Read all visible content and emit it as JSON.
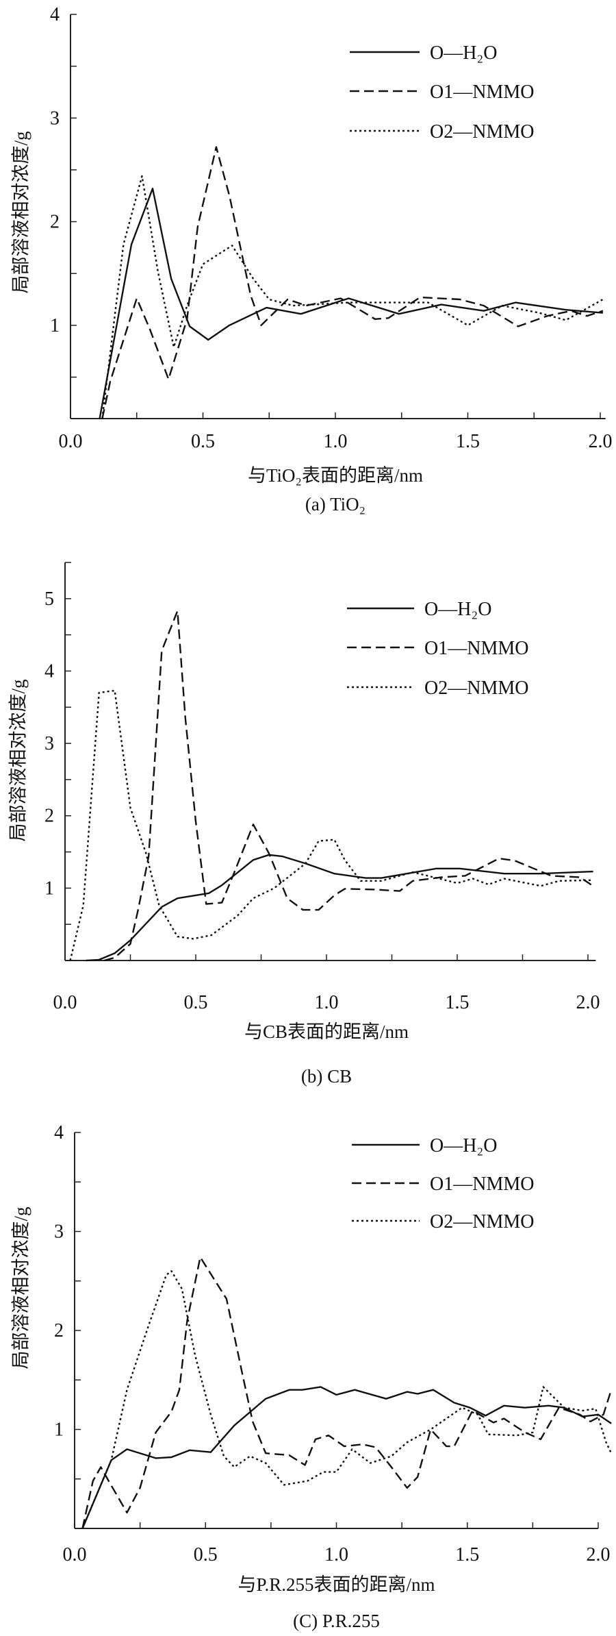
{
  "chart_data": [
    {
      "type": "line",
      "caption": "(a) TiO₂",
      "xlabel": "与TiO₂表面的距离/nm",
      "ylabel": "局部溶液相对浓度/g",
      "xlim": [
        0,
        2.02
      ],
      "ylim": [
        0.1,
        4
      ],
      "xticks": [
        "0.0",
        "0.5",
        "1.0",
        "1.5",
        "2.0"
      ],
      "yticks": [
        "1",
        "2",
        "3",
        "4"
      ],
      "grid": false,
      "legend_position": "top-right",
      "series": [
        {
          "name": "O—H₂O",
          "style": "solid",
          "points": [
            [
              0.11,
              0.1
            ],
            [
              0.23,
              1.78
            ],
            [
              0.31,
              2.32
            ],
            [
              0.38,
              1.45
            ],
            [
              0.45,
              0.99
            ],
            [
              0.52,
              0.86
            ],
            [
              0.6,
              1.0
            ],
            [
              0.74,
              1.17
            ],
            [
              0.87,
              1.11
            ],
            [
              1.05,
              1.26
            ],
            [
              1.24,
              1.11
            ],
            [
              1.4,
              1.2
            ],
            [
              1.56,
              1.14
            ],
            [
              1.68,
              1.22
            ],
            [
              1.87,
              1.15
            ],
            [
              2.01,
              1.12
            ]
          ]
        },
        {
          "name": "O1—NMMO",
          "style": "dashed",
          "points": [
            [
              0.12,
              0.1
            ],
            [
              0.15,
              0.46
            ],
            [
              0.25,
              1.26
            ],
            [
              0.3,
              0.96
            ],
            [
              0.37,
              0.48
            ],
            [
              0.44,
              1.06
            ],
            [
              0.48,
              1.95
            ],
            [
              0.55,
              2.72
            ],
            [
              0.6,
              2.25
            ],
            [
              0.68,
              1.29
            ],
            [
              0.72,
              1.0
            ],
            [
              0.82,
              1.25
            ],
            [
              0.89,
              1.19
            ],
            [
              1.02,
              1.26
            ],
            [
              1.15,
              1.06
            ],
            [
              1.2,
              1.07
            ],
            [
              1.32,
              1.27
            ],
            [
              1.47,
              1.25
            ],
            [
              1.56,
              1.19
            ],
            [
              1.69,
              0.99
            ],
            [
              1.8,
              1.09
            ],
            [
              1.89,
              1.14
            ],
            [
              1.95,
              1.09
            ],
            [
              2.01,
              1.14
            ]
          ]
        },
        {
          "name": "O2—NMMO",
          "style": "dotted",
          "points": [
            [
              0.12,
              0.1
            ],
            [
              0.2,
              1.78
            ],
            [
              0.27,
              2.44
            ],
            [
              0.33,
              1.52
            ],
            [
              0.39,
              0.79
            ],
            [
              0.44,
              1.19
            ],
            [
              0.5,
              1.59
            ],
            [
              0.61,
              1.77
            ],
            [
              0.69,
              1.45
            ],
            [
              0.75,
              1.25
            ],
            [
              0.84,
              1.19
            ],
            [
              1.05,
              1.22
            ],
            [
              1.2,
              1.22
            ],
            [
              1.35,
              1.22
            ],
            [
              1.5,
              1.0
            ],
            [
              1.63,
              1.19
            ],
            [
              1.77,
              1.12
            ],
            [
              1.87,
              1.05
            ],
            [
              2.01,
              1.25
            ]
          ]
        }
      ]
    },
    {
      "type": "line",
      "caption": "(b) CB",
      "xlabel": "与CB表面的距离/nm",
      "ylabel": "局部溶液相对浓度/g",
      "xlim": [
        0,
        2.03
      ],
      "ylim": [
        0,
        5.5
      ],
      "xticks": [
        "0.0",
        "0.5",
        "1.0",
        "1.5",
        "2.0"
      ],
      "yticks": [
        "1",
        "2",
        "3",
        "4",
        "5"
      ],
      "grid": false,
      "legend_position": "top-right",
      "series": [
        {
          "name": "O—H₂O",
          "style": "solid",
          "points": [
            [
              0.08,
              0
            ],
            [
              0.13,
              0.01
            ],
            [
              0.19,
              0.1
            ],
            [
              0.25,
              0.28
            ],
            [
              0.37,
              0.74
            ],
            [
              0.43,
              0.86
            ],
            [
              0.55,
              0.93
            ],
            [
              0.6,
              1.04
            ],
            [
              0.72,
              1.39
            ],
            [
              0.78,
              1.46
            ],
            [
              0.83,
              1.44
            ],
            [
              0.92,
              1.34
            ],
            [
              1.03,
              1.2
            ],
            [
              1.15,
              1.14
            ],
            [
              1.21,
              1.14
            ],
            [
              1.42,
              1.27
            ],
            [
              1.51,
              1.27
            ],
            [
              1.68,
              1.2
            ],
            [
              1.82,
              1.2
            ],
            [
              2.02,
              1.23
            ]
          ]
        },
        {
          "name": "O1—NMMO",
          "style": "dashed",
          "points": [
            [
              0.15,
              0
            ],
            [
              0.19,
              0.04
            ],
            [
              0.25,
              0.23
            ],
            [
              0.28,
              0.71
            ],
            [
              0.32,
              1.44
            ],
            [
              0.37,
              4.28
            ],
            [
              0.43,
              4.83
            ],
            [
              0.46,
              3.36
            ],
            [
              0.5,
              1.92
            ],
            [
              0.54,
              0.78
            ],
            [
              0.6,
              0.8
            ],
            [
              0.65,
              1.24
            ],
            [
              0.72,
              1.88
            ],
            [
              0.78,
              1.48
            ],
            [
              0.85,
              0.86
            ],
            [
              0.91,
              0.7
            ],
            [
              0.97,
              0.7
            ],
            [
              1.03,
              0.9
            ],
            [
              1.07,
              0.99
            ],
            [
              1.19,
              0.98
            ],
            [
              1.28,
              0.96
            ],
            [
              1.33,
              1.1
            ],
            [
              1.44,
              1.15
            ],
            [
              1.53,
              1.17
            ],
            [
              1.66,
              1.41
            ],
            [
              1.72,
              1.38
            ],
            [
              1.86,
              1.17
            ],
            [
              1.97,
              1.15
            ],
            [
              2.02,
              1.03
            ]
          ]
        },
        {
          "name": "O2—NMMO",
          "style": "dotted",
          "points": [
            [
              0.02,
              0
            ],
            [
              0.07,
              0.76
            ],
            [
              0.13,
              3.7
            ],
            [
              0.19,
              3.73
            ],
            [
              0.25,
              2.11
            ],
            [
              0.31,
              1.48
            ],
            [
              0.36,
              0.76
            ],
            [
              0.43,
              0.33
            ],
            [
              0.49,
              0.3
            ],
            [
              0.56,
              0.35
            ],
            [
              0.66,
              0.62
            ],
            [
              0.72,
              0.86
            ],
            [
              0.8,
              1.0
            ],
            [
              0.92,
              1.34
            ],
            [
              0.97,
              1.65
            ],
            [
              1.03,
              1.67
            ],
            [
              1.07,
              1.39
            ],
            [
              1.13,
              1.1
            ],
            [
              1.21,
              1.1
            ],
            [
              1.33,
              1.22
            ],
            [
              1.41,
              1.15
            ],
            [
              1.5,
              1.07
            ],
            [
              1.56,
              1.13
            ],
            [
              1.62,
              1.05
            ],
            [
              1.68,
              1.13
            ],
            [
              1.82,
              1.03
            ],
            [
              1.89,
              1.1
            ],
            [
              2.02,
              1.11
            ]
          ]
        }
      ]
    },
    {
      "type": "line",
      "caption": "(C) P.R.255",
      "xlabel": "与P.R.255表面的距离/nm",
      "ylabel": "局部溶液相对浓度/g",
      "xlim": [
        0,
        2.0
      ],
      "ylim": [
        0,
        4
      ],
      "xticks": [
        "0.0",
        "0.5",
        "1.0",
        "1.5",
        "2.0"
      ],
      "yticks": [
        "1",
        "2",
        "3",
        "4"
      ],
      "grid": false,
      "legend_position": "top-right",
      "series": [
        {
          "name": "O—H₂O",
          "style": "solid",
          "points": [
            [
              0.03,
              0
            ],
            [
              0.14,
              0.69
            ],
            [
              0.2,
              0.8
            ],
            [
              0.31,
              0.71
            ],
            [
              0.37,
              0.72
            ],
            [
              0.44,
              0.79
            ],
            [
              0.52,
              0.77
            ],
            [
              0.61,
              1.04
            ],
            [
              0.73,
              1.31
            ],
            [
              0.82,
              1.4
            ],
            [
              0.87,
              1.4
            ],
            [
              0.94,
              1.43
            ],
            [
              1.0,
              1.35
            ],
            [
              1.07,
              1.4
            ],
            [
              1.19,
              1.31
            ],
            [
              1.27,
              1.38
            ],
            [
              1.31,
              1.36
            ],
            [
              1.37,
              1.4
            ],
            [
              1.45,
              1.27
            ],
            [
              1.51,
              1.22
            ],
            [
              1.57,
              1.14
            ],
            [
              1.64,
              1.24
            ],
            [
              1.72,
              1.22
            ],
            [
              1.81,
              1.24
            ],
            [
              1.87,
              1.22
            ],
            [
              1.94,
              1.13
            ],
            [
              2.0,
              1.15
            ],
            [
              2.05,
              1.06
            ]
          ]
        },
        {
          "name": "O1—NMMO",
          "style": "dashed",
          "points": [
            [
              0.03,
              0
            ],
            [
              0.07,
              0.48
            ],
            [
              0.1,
              0.62
            ],
            [
              0.13,
              0.48
            ],
            [
              0.2,
              0.16
            ],
            [
              0.25,
              0.41
            ],
            [
              0.31,
              0.97
            ],
            [
              0.37,
              1.18
            ],
            [
              0.4,
              1.4
            ],
            [
              0.43,
              2.1
            ],
            [
              0.48,
              2.74
            ],
            [
              0.53,
              2.53
            ],
            [
              0.58,
              2.32
            ],
            [
              0.64,
              1.57
            ],
            [
              0.68,
              1.08
            ],
            [
              0.73,
              0.76
            ],
            [
              0.82,
              0.74
            ],
            [
              0.88,
              0.64
            ],
            [
              0.92,
              0.9
            ],
            [
              0.97,
              0.94
            ],
            [
              1.03,
              0.83
            ],
            [
              1.1,
              0.85
            ],
            [
              1.15,
              0.82
            ],
            [
              1.21,
              0.62
            ],
            [
              1.27,
              0.41
            ],
            [
              1.31,
              0.52
            ],
            [
              1.36,
              1.0
            ],
            [
              1.42,
              0.83
            ],
            [
              1.45,
              0.83
            ],
            [
              1.52,
              1.19
            ],
            [
              1.6,
              1.07
            ],
            [
              1.64,
              1.11
            ],
            [
              1.72,
              0.97
            ],
            [
              1.78,
              0.9
            ],
            [
              1.85,
              1.22
            ],
            [
              1.93,
              1.15
            ],
            [
              1.97,
              1.08
            ],
            [
              2.02,
              1.15
            ],
            [
              2.05,
              1.4
            ]
          ]
        },
        {
          "name": "O2—NMMO",
          "style": "dotted",
          "points": [
            [
              0.03,
              0
            ],
            [
              0.1,
              0.44
            ],
            [
              0.14,
              0.69
            ],
            [
              0.2,
              1.4
            ],
            [
              0.28,
              2.03
            ],
            [
              0.35,
              2.56
            ],
            [
              0.37,
              2.6
            ],
            [
              0.41,
              2.42
            ],
            [
              0.46,
              1.75
            ],
            [
              0.52,
              1.15
            ],
            [
              0.57,
              0.73
            ],
            [
              0.61,
              0.62
            ],
            [
              0.67,
              0.73
            ],
            [
              0.73,
              0.66
            ],
            [
              0.8,
              0.44
            ],
            [
              0.89,
              0.48
            ],
            [
              0.95,
              0.57
            ],
            [
              1.0,
              0.57
            ],
            [
              1.06,
              0.8
            ],
            [
              1.13,
              0.66
            ],
            [
              1.21,
              0.73
            ],
            [
              1.27,
              0.87
            ],
            [
              1.36,
              1.0
            ],
            [
              1.48,
              1.22
            ],
            [
              1.54,
              1.15
            ],
            [
              1.58,
              0.95
            ],
            [
              1.69,
              0.94
            ],
            [
              1.75,
              0.97
            ],
            [
              1.79,
              1.43
            ],
            [
              1.87,
              1.22
            ],
            [
              1.94,
              1.19
            ],
            [
              1.99,
              1.21
            ],
            [
              2.03,
              0.87
            ],
            [
              2.05,
              0.76
            ]
          ]
        }
      ]
    }
  ]
}
